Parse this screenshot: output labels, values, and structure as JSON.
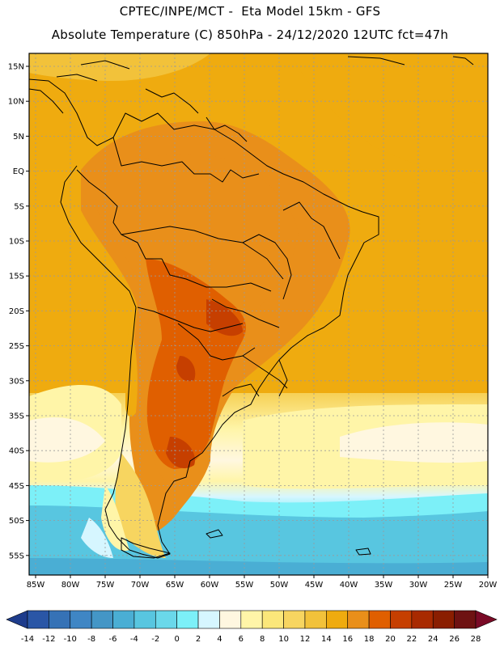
{
  "header": {
    "line1": "CPTEC/INPE/MCT -  Eta Model 15km - GFS",
    "line2": "Absolute Temperature (C) 850hPa - 24/12/2020 12UTC fct=47h"
  },
  "map": {
    "lat_labels": [
      "15N",
      "10N",
      "5N",
      "EQ",
      "5S",
      "10S",
      "15S",
      "20S",
      "25S",
      "30S",
      "35S",
      "40S",
      "45S",
      "50S",
      "55S"
    ],
    "lon_labels": [
      "85W",
      "80W",
      "75W",
      "70W",
      "65W",
      "60W",
      "55W",
      "50W",
      "45W",
      "40W",
      "35W",
      "30W",
      "25W",
      "20W"
    ]
  },
  "colorbar": {
    "labels": [
      "-14",
      "-12",
      "-10",
      "-8",
      "-6",
      "-4",
      "-2",
      "0",
      "2",
      "4",
      "6",
      "8",
      "10",
      "12",
      "14",
      "16",
      "18",
      "20",
      "22",
      "24",
      "26",
      "28"
    ],
    "colors": [
      "#1e3c8c",
      "#2a56a6",
      "#3672b6",
      "#3f86c4",
      "#4496c6",
      "#4aaed4",
      "#58c6e0",
      "#6ad8ea",
      "#7cf0f8",
      "#d6f6ff",
      "#fff7e0",
      "#fff5a8",
      "#fbe77a",
      "#f7d560",
      "#f2c23a",
      "#efab0f",
      "#e98f1a",
      "#e05f00",
      "#c63f00",
      "#a82a00",
      "#8a1e00",
      "#6e1212",
      "#7a0a26"
    ]
  }
}
